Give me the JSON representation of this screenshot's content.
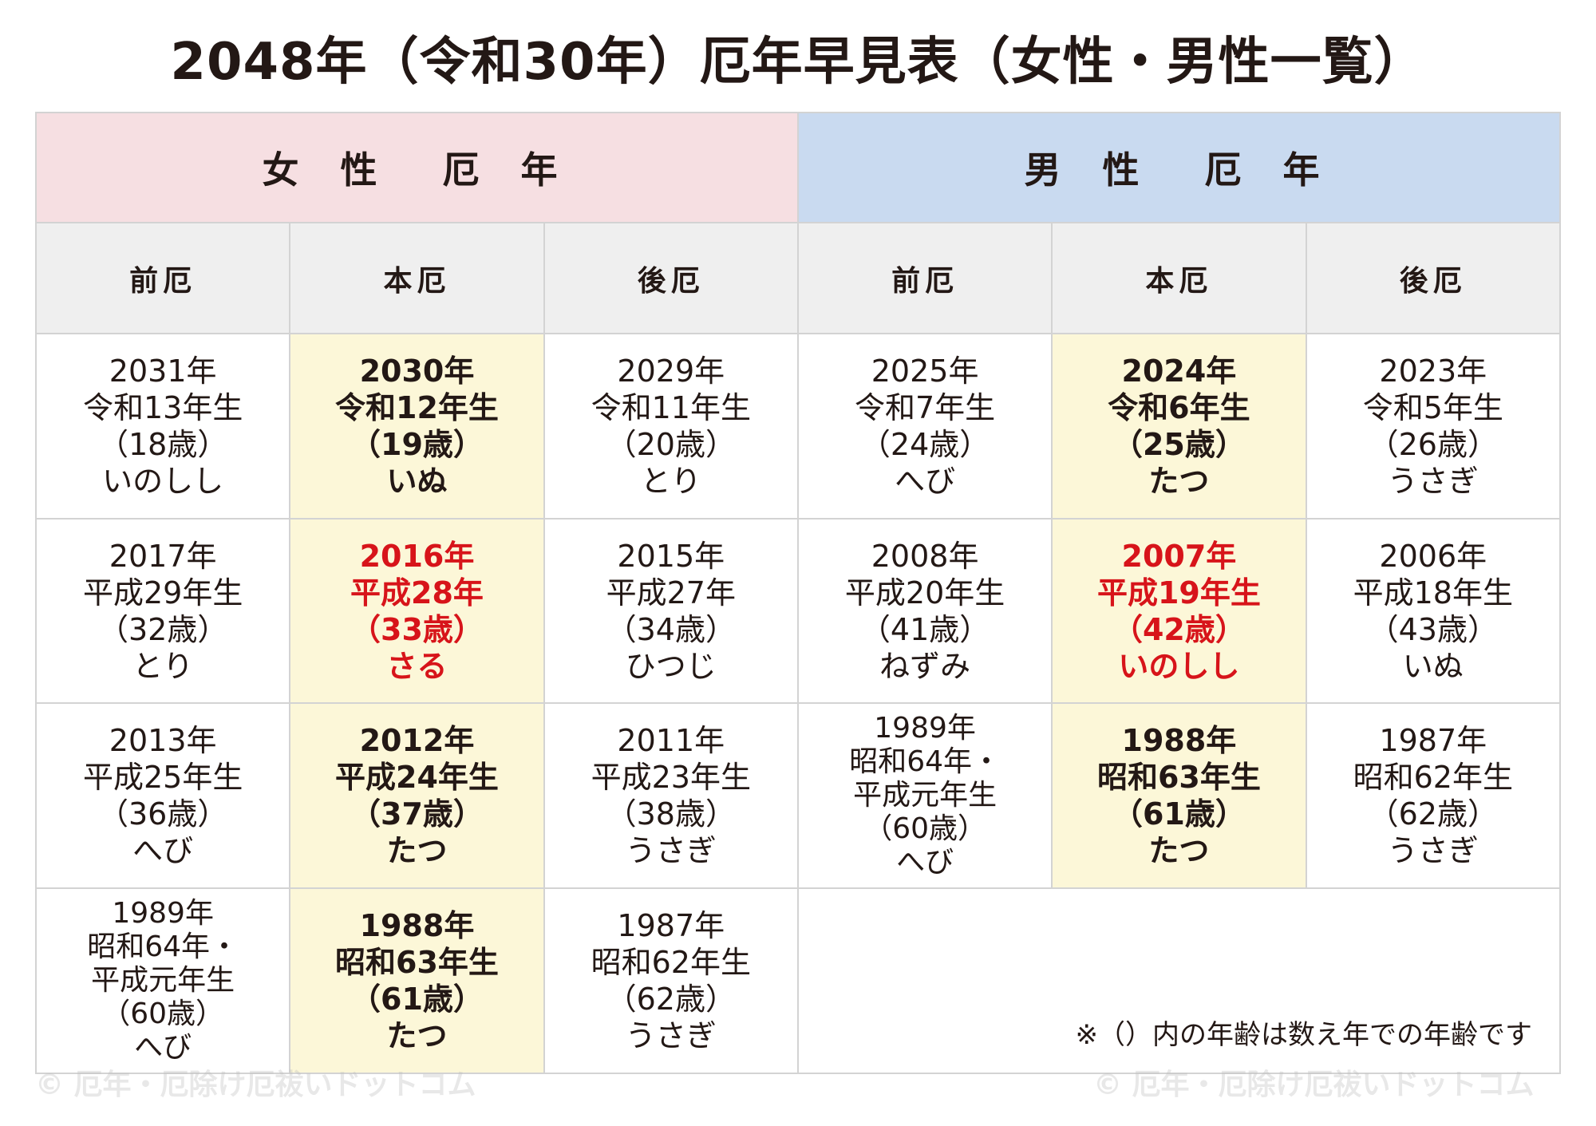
{
  "title": "2048年（令和30年）厄年早見表（女性・男性一覧）",
  "header": {
    "women": "女 性　厄 年",
    "men": "男 性　厄 年",
    "women_sub": [
      "前厄",
      "本厄",
      "後厄"
    ],
    "men_sub": [
      "前厄",
      "本厄",
      "後厄"
    ]
  },
  "rows": [
    {
      "women": [
        [
          "2031年",
          "令和13年生",
          "（18歳）",
          "いのしし"
        ],
        [
          "2030年",
          "令和12年生",
          "（19歳）",
          "いぬ"
        ],
        [
          "2029年",
          "令和11年生",
          "（20歳）",
          "とり"
        ]
      ],
      "men": [
        [
          "2025年",
          "令和7年生",
          "（24歳）",
          "へび"
        ],
        [
          "2024年",
          "令和6年生",
          "（25歳）",
          "たつ"
        ],
        [
          "2023年",
          "令和5年生",
          "（26歳）",
          "うさぎ"
        ]
      ]
    },
    {
      "women": [
        [
          "2017年",
          "平成29年生",
          "（32歳）",
          "とり"
        ],
        [
          "2016年",
          "平成28年",
          "（33歳）",
          "さる"
        ],
        [
          "2015年",
          "平成27年",
          "（34歳）",
          "ひつじ"
        ]
      ],
      "men": [
        [
          "2008年",
          "平成20年生",
          "（41歳）",
          "ねずみ"
        ],
        [
          "2007年",
          "平成19年生",
          "（42歳）",
          "いのしし"
        ],
        [
          "2006年",
          "平成18年生",
          "（43歳）",
          "いぬ"
        ]
      ]
    },
    {
      "women": [
        [
          "2013年",
          "平成25年生",
          "（36歳）",
          "へび"
        ],
        [
          "2012年",
          "平成24年生",
          "（37歳）",
          "たつ"
        ],
        [
          "2011年",
          "平成23年生",
          "（38歳）",
          "うさぎ"
        ]
      ],
      "men": [
        [
          "1989年",
          "昭和64年・",
          "平成元年生",
          "（60歳）",
          "へび"
        ],
        [
          "1988年",
          "昭和63年生",
          "（61歳）",
          "たつ"
        ],
        [
          "1987年",
          "昭和62年生",
          "（62歳）",
          "うさぎ"
        ]
      ]
    },
    {
      "women": [
        [
          "1989年",
          "昭和64年・",
          "平成元年生",
          "（60歳）",
          "へび"
        ],
        [
          "1988年",
          "昭和63年生",
          "（61歳）",
          "たつ"
        ],
        [
          "1987年",
          "昭和62年生",
          "（62歳）",
          "うさぎ"
        ]
      ],
      "men": []
    }
  ],
  "note": "※（）内の年齢は数え年での年齢です",
  "watermark": "© 厄年・厄除け厄祓いドットコム",
  "colors": {
    "women_header": "#f6dfe2",
    "men_header": "#c9daf0",
    "sub_header": "#efefef",
    "honyaku_highlight": "#fcf7d8",
    "taiyaku_red": "#d7141a"
  }
}
